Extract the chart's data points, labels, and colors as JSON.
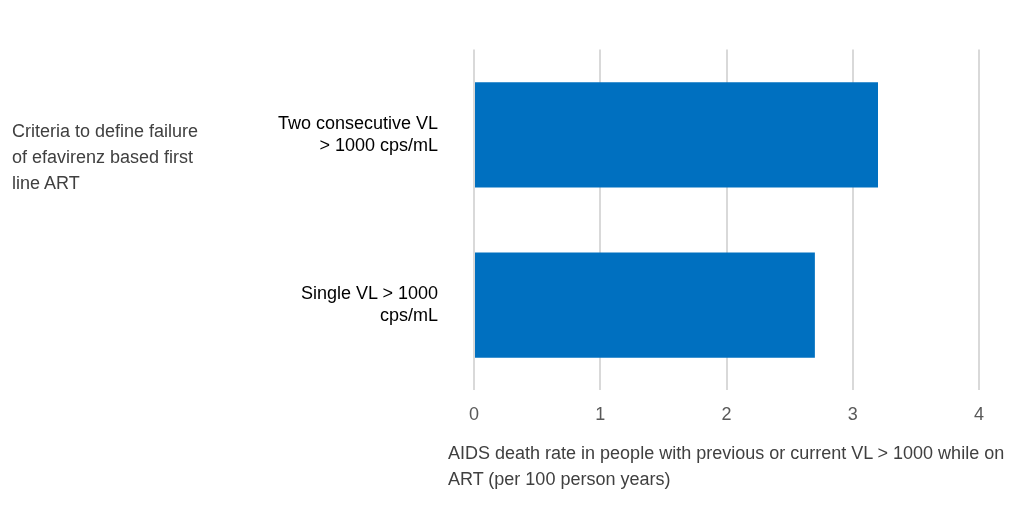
{
  "chart_data": {
    "type": "bar",
    "orientation": "horizontal",
    "ylabel": "Criteria to define failure of efavirenz based first line ART",
    "xlabel": "AIDS death rate in people with previous or current VL > 1000  while on ART  (per 100 person years)",
    "categories": [
      "Two consecutive VL > 1000  cps/mL",
      "Single VL > 1000 cps/mL"
    ],
    "values": [
      3.2,
      2.7
    ],
    "color": "#0070c0",
    "xlim": [
      0,
      4
    ],
    "xticks": [
      0,
      1,
      2,
      3,
      4
    ],
    "grid": "x",
    "legend": false
  }
}
